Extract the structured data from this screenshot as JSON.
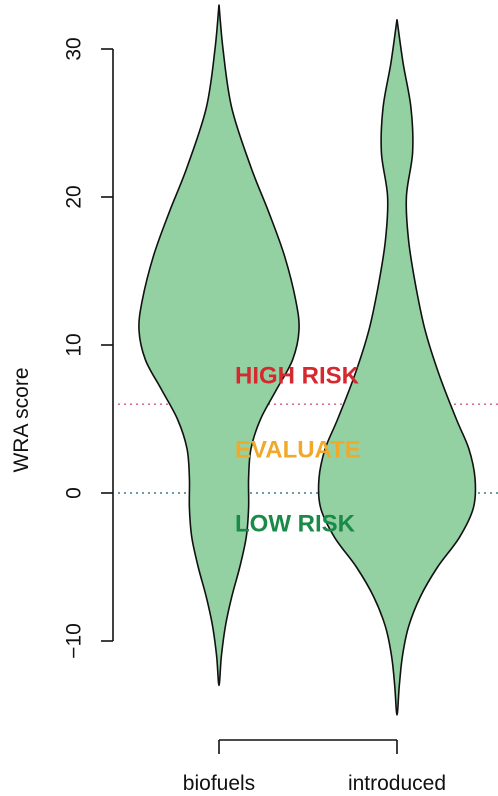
{
  "chart_data": {
    "type": "violin",
    "title": "",
    "xlabel": "",
    "ylabel": "WRA score",
    "ylim": [
      -14,
      33
    ],
    "yticks": [
      -10,
      0,
      10,
      20,
      30
    ],
    "categories": [
      "biofuels",
      "introduced"
    ],
    "fill_color": "#93d1a3",
    "series": [
      {
        "category": "biofuels",
        "min": -13,
        "max": 33,
        "profile": [
          {
            "y": 33,
            "w": 0.0
          },
          {
            "y": 30,
            "w": 0.05
          },
          {
            "y": 26,
            "w": 0.16
          },
          {
            "y": 22,
            "w": 0.4
          },
          {
            "y": 19,
            "w": 0.62
          },
          {
            "y": 16,
            "w": 0.82
          },
          {
            "y": 13,
            "w": 0.96
          },
          {
            "y": 11,
            "w": 1.0
          },
          {
            "y": 9,
            "w": 0.92
          },
          {
            "y": 7,
            "w": 0.72
          },
          {
            "y": 5,
            "w": 0.52
          },
          {
            "y": 3,
            "w": 0.4
          },
          {
            "y": 1,
            "w": 0.37
          },
          {
            "y": -1,
            "w": 0.37
          },
          {
            "y": -3,
            "w": 0.34
          },
          {
            "y": -5,
            "w": 0.26
          },
          {
            "y": -7,
            "w": 0.16
          },
          {
            "y": -9,
            "w": 0.08
          },
          {
            "y": -11,
            "w": 0.03
          },
          {
            "y": -13,
            "w": 0.0
          }
        ]
      },
      {
        "category": "introduced",
        "min": -15,
        "max": 32,
        "profile": [
          {
            "y": 32,
            "w": 0.0
          },
          {
            "y": 29,
            "w": 0.08
          },
          {
            "y": 26,
            "w": 0.18
          },
          {
            "y": 23,
            "w": 0.2
          },
          {
            "y": 20,
            "w": 0.12
          },
          {
            "y": 17,
            "w": 0.15
          },
          {
            "y": 14,
            "w": 0.24
          },
          {
            "y": 11,
            "w": 0.36
          },
          {
            "y": 8,
            "w": 0.54
          },
          {
            "y": 5,
            "w": 0.76
          },
          {
            "y": 3,
            "w": 0.92
          },
          {
            "y": 1,
            "w": 1.0
          },
          {
            "y": -1,
            "w": 0.98
          },
          {
            "y": -3,
            "w": 0.8
          },
          {
            "y": -5,
            "w": 0.52
          },
          {
            "y": -7,
            "w": 0.3
          },
          {
            "y": -9,
            "w": 0.15
          },
          {
            "y": -11,
            "w": 0.07
          },
          {
            "y": -13,
            "w": 0.03
          },
          {
            "y": -15,
            "w": 0.0
          }
        ]
      }
    ],
    "thresholds": [
      {
        "value": 6,
        "color": "#d05a8c"
      },
      {
        "value": 0,
        "color": "#3a7f86"
      }
    ],
    "zone_labels": [
      {
        "text": "HIGH RISK",
        "y": 8,
        "color": "#d6282f"
      },
      {
        "text": "EVALUATE",
        "y": 3,
        "color": "#f0a92a"
      },
      {
        "text": "LOW RISK",
        "y": -2,
        "color": "#1a8a48"
      }
    ]
  }
}
